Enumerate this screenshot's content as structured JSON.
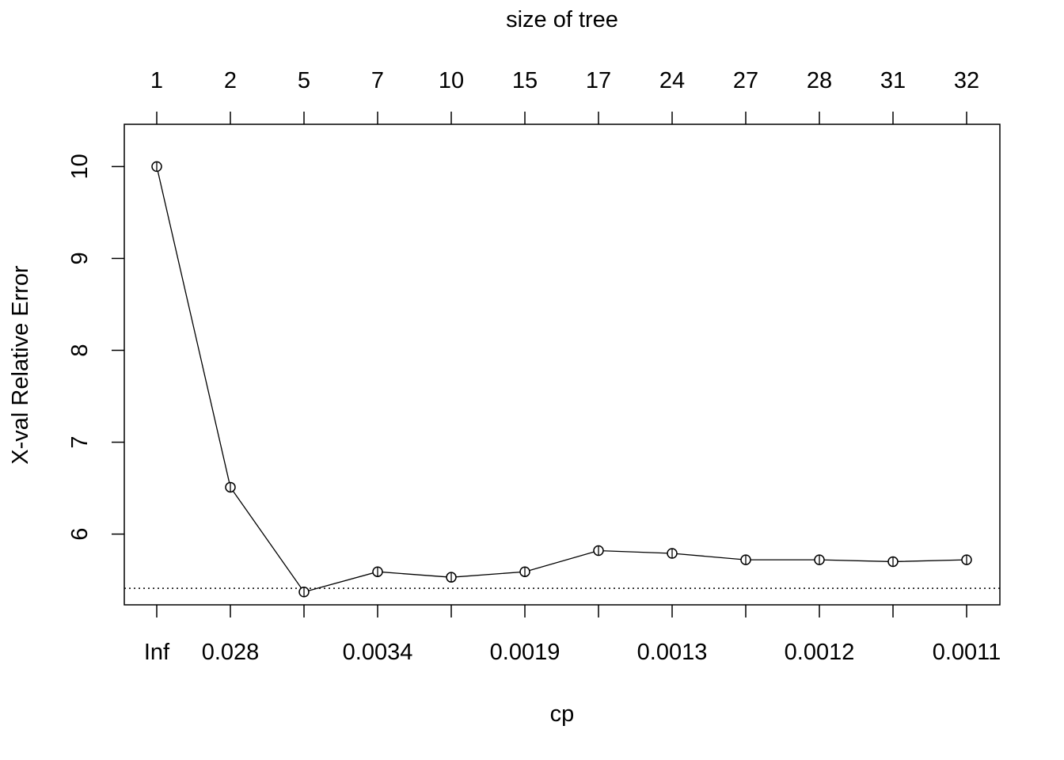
{
  "chart_data": {
    "type": "line",
    "top_axis_title": "size of tree",
    "xlabel": "cp",
    "ylabel": "X-val Relative Error",
    "size_of_tree": [
      "1",
      "2",
      "5",
      "7",
      "10",
      "15",
      "17",
      "24",
      "27",
      "28",
      "31",
      "32"
    ],
    "cp_labels": [
      "Inf",
      "0.028",
      "",
      "0.0034",
      "",
      "0.0019",
      "",
      "0.0013",
      "",
      "0.0012",
      "",
      "0.0011"
    ],
    "y_ticks": [
      6,
      7,
      8,
      9,
      10
    ],
    "ylim": [
      5.23,
      10.46
    ],
    "values": [
      10.0,
      6.51,
      5.37,
      5.59,
      5.53,
      5.59,
      5.82,
      5.79,
      5.72,
      5.72,
      5.7,
      5.72
    ],
    "threshold": 5.41,
    "grid": false
  }
}
